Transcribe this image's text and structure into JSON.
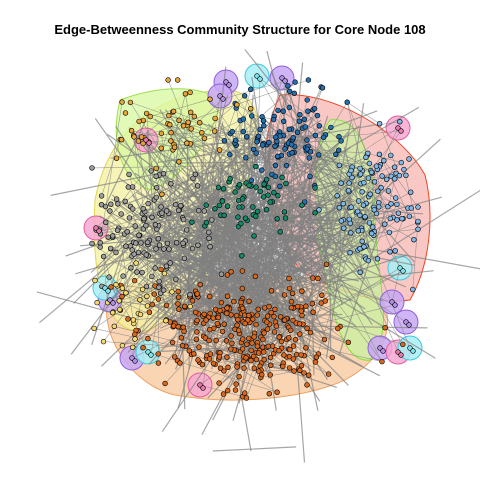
{
  "title": "Edge-Betweenness Community Structure for Core Node 108",
  "graph": {
    "layout": "force-directed",
    "edge_color": "#808080",
    "node_border_color": "#000000",
    "community_hulls": true,
    "communities": [
      {
        "id": "orange",
        "node_color": "#d8681f",
        "hull_fill": "#f7c79a",
        "hull_stroke": "#f0a060",
        "region": "bottom-center",
        "size": "large"
      },
      {
        "id": "blue",
        "node_color": "#2471b0",
        "hull_fill": "#f7b5b0",
        "hull_stroke": "#ee4422",
        "region": "top-center",
        "size": "large"
      },
      {
        "id": "light-blue",
        "node_color": "#7fb8e6",
        "hull_fill": "#f7b5b0",
        "hull_stroke": "#ee4422",
        "region": "right",
        "size": "large"
      },
      {
        "id": "teal",
        "node_color": "#138a6a",
        "hull_fill": "#c8f0a0",
        "hull_stroke": "#88e040",
        "region": "center",
        "size": "medium"
      },
      {
        "id": "gray",
        "node_color": "#9c9c9c",
        "hull_fill": "#f4f0a0",
        "hull_stroke": "#e0d850",
        "region": "left",
        "size": "large"
      },
      {
        "id": "gold",
        "node_color": "#e8a33a",
        "hull_fill": "#f4f0a0",
        "hull_stroke": "#e0d850",
        "region": "top-left",
        "size": "medium"
      },
      {
        "id": "yellow",
        "node_color": "#f5d96e",
        "hull_fill": "#d8f8a0",
        "hull_stroke": "#a0e050",
        "region": "lower-left",
        "size": "medium"
      },
      {
        "id": "pink",
        "node_color": "#e277a8",
        "hull_fill": "#f7a8d0",
        "hull_stroke": "#e060a0",
        "region": "periphery",
        "size": "small"
      },
      {
        "id": "purple",
        "node_color": "#b08ee0",
        "hull_fill": "#c8a8f4",
        "hull_stroke": "#9060e0",
        "region": "periphery",
        "size": "small"
      },
      {
        "id": "cyan",
        "node_color": "#7fe0e8",
        "hull_fill": "#a8eef4",
        "hull_stroke": "#40c8e0",
        "region": "periphery",
        "size": "small"
      }
    ]
  }
}
